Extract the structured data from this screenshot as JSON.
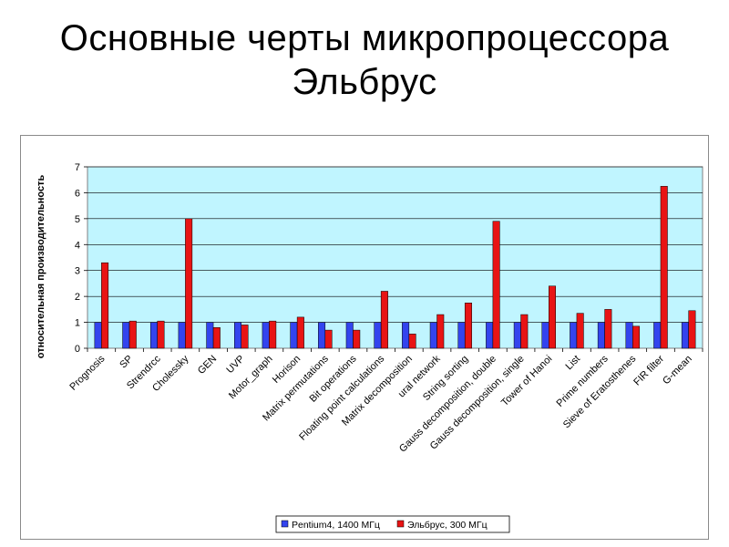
{
  "slide": {
    "title_line1": "Основные черты микропроцессора",
    "title_line2": "Эльбрус"
  },
  "colors": {
    "plot_background": "#c0f5ff",
    "pentium": "#3344ee",
    "elbrus": "#e81414"
  },
  "chart_data": {
    "type": "bar",
    "title": "",
    "xlabel": "",
    "ylabel": "относительная производительность",
    "ylim": [
      0,
      7
    ],
    "yticks": [
      0,
      1,
      2,
      3,
      4,
      5,
      6,
      7
    ],
    "grid": "horizontal",
    "legend_position": "bottom-center",
    "categories": [
      "Prognosis",
      "SP",
      "Strendrcc",
      "Cholessky",
      "GEN",
      "UVP",
      "Motor_graph",
      "Horison",
      "Matrix permutations",
      "Bit operations",
      "Floating point calculations",
      "Matrix decomposition",
      "ural network",
      "String sorting",
      "Gauss decomposition, double",
      "Gauss decomposition, single",
      "Tower of Hanoi",
      "List",
      "Prime numbers",
      "Sieve of Eratosthenes",
      "FIR filter",
      "G-mean"
    ],
    "series": [
      {
        "name": "Pentium4, 1400 МГц",
        "values": [
          1,
          1,
          1,
          1,
          1,
          1,
          1,
          1,
          1,
          1,
          1,
          1,
          1,
          1,
          1,
          1,
          1,
          1,
          1,
          1,
          1,
          1
        ]
      },
      {
        "name": "Эльбрус, 300 МГц",
        "values": [
          3.3,
          1.05,
          1.05,
          5.0,
          0.8,
          0.9,
          1.05,
          1.2,
          0.7,
          0.7,
          2.2,
          0.55,
          1.3,
          1.75,
          4.9,
          1.3,
          2.4,
          1.35,
          1.5,
          0.85,
          6.25,
          1.45
        ]
      }
    ]
  }
}
